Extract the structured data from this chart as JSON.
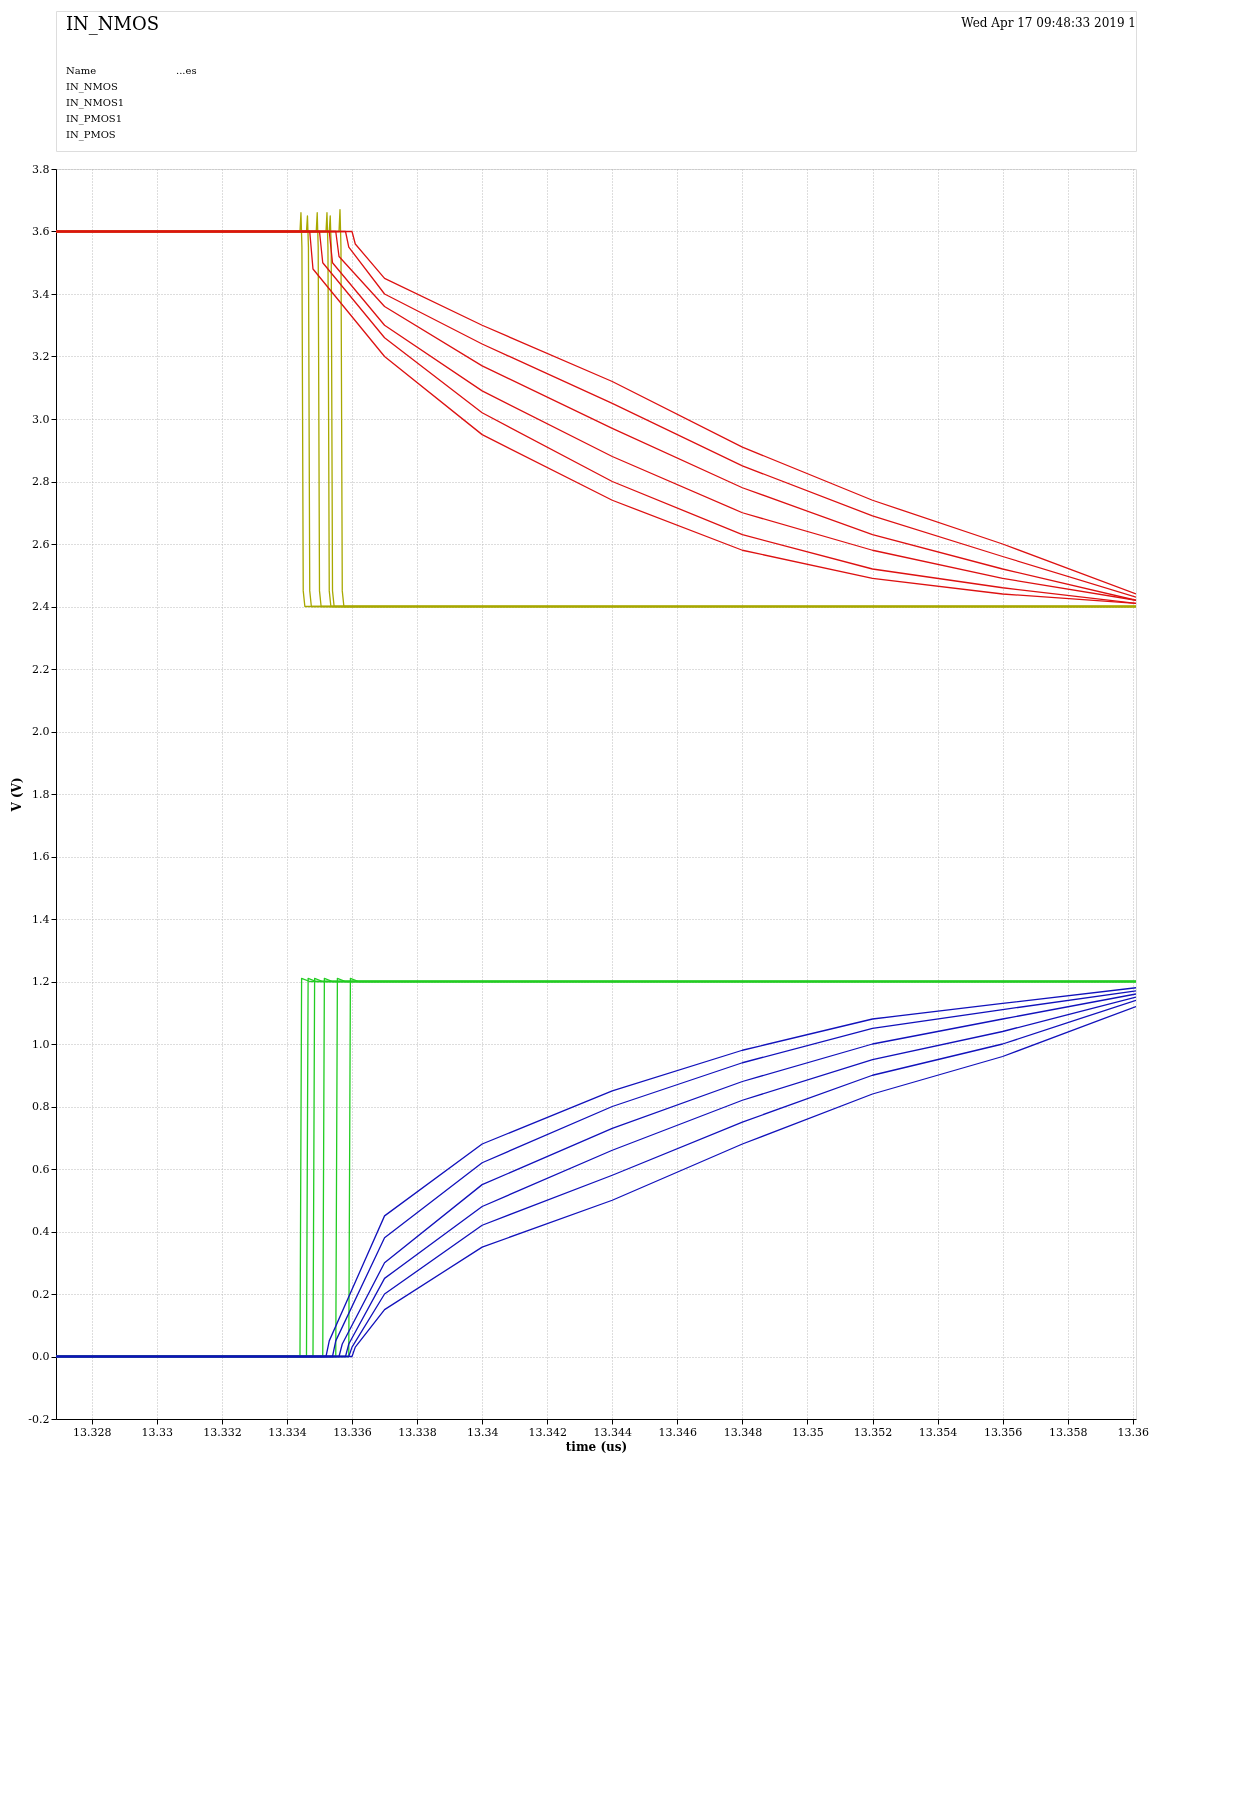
{
  "chart_data": {
    "type": "line",
    "title": "IN_NMOS",
    "xlabel": "time (us)",
    "ylabel": "V (V)",
    "annotations": [
      "Wed Apr 17 09:48:33 2019 1",
      "Name",
      "...es",
      "IN_NMOS",
      "IN_NMOS1",
      "IN_PMOS1",
      "IN_PMOS"
    ],
    "xlim": [
      13.3269,
      13.3601
    ],
    "ylim": [
      -0.2,
      3.8
    ],
    "xticks": [
      13.328,
      13.33,
      13.332,
      13.334,
      13.336,
      13.338,
      13.34,
      13.342,
      13.344,
      13.346,
      13.348,
      13.35,
      13.352,
      13.354,
      13.356,
      13.358,
      13.36
    ],
    "yticks": [
      -0.2,
      {
        "value": 0,
        "label": "0.0"
      },
      0.2,
      0.4,
      0.6,
      0.8,
      {
        "value": 1,
        "label": "1.0"
      },
      1.2,
      1.4,
      1.6,
      1.8,
      {
        "value": 2,
        "label": "2.0"
      },
      2.2,
      2.4,
      2.6,
      2.8,
      {
        "value": 3,
        "label": "3.0"
      },
      3.2,
      3.4,
      3.6,
      3.8
    ],
    "grid": true,
    "legend": false,
    "marker": "none",
    "line_style": "solid",
    "series": [
      {
        "color": "#a8a800",
        "x": [
          13.3269,
          13.3344,
          13.33443,
          13.33446,
          13.3345,
          13.33455,
          13.3601
        ],
        "values": [
          3.6,
          3.6,
          3.66,
          3.55,
          2.45,
          2.4,
          2.4
        ]
      },
      {
        "color": "#a8a800",
        "x": [
          13.3269,
          13.3346,
          13.33463,
          13.33466,
          13.3347,
          13.33475,
          13.3601
        ],
        "values": [
          3.6,
          3.6,
          3.65,
          3.55,
          2.45,
          2.4,
          2.4
        ]
      },
      {
        "color": "#a8a800",
        "x": [
          13.3269,
          13.3349,
          13.33493,
          13.33496,
          13.335,
          13.33505,
          13.3601
        ],
        "values": [
          3.6,
          3.6,
          3.66,
          3.55,
          2.45,
          2.4,
          2.4
        ]
      },
      {
        "color": "#a8a800",
        "x": [
          13.3269,
          13.3352,
          13.33523,
          13.33526,
          13.3353,
          13.33535,
          13.3601
        ],
        "values": [
          3.6,
          3.6,
          3.66,
          3.55,
          2.45,
          2.4,
          2.4
        ]
      },
      {
        "color": "#a8a800",
        "x": [
          13.3269,
          13.3353,
          13.33533,
          13.33536,
          13.3354,
          13.33545,
          13.3601
        ],
        "values": [
          3.6,
          3.6,
          3.65,
          3.55,
          2.45,
          2.4,
          2.4
        ]
      },
      {
        "color": "#a8a800",
        "x": [
          13.3269,
          13.3356,
          13.33563,
          13.33566,
          13.3357,
          13.33575,
          13.3601
        ],
        "values": [
          3.6,
          3.6,
          3.67,
          3.55,
          2.45,
          2.4,
          2.4
        ]
      },
      {
        "color": "#22cc22",
        "x": [
          13.3269,
          13.3344,
          13.33445,
          13.3347,
          13.3601
        ],
        "values": [
          0,
          0,
          1.21,
          1.2,
          1.2
        ]
      },
      {
        "color": "#22cc22",
        "x": [
          13.3269,
          13.3346,
          13.33465,
          13.3349,
          13.3601
        ],
        "values": [
          0,
          0,
          1.21,
          1.2,
          1.2
        ]
      },
      {
        "color": "#22cc22",
        "x": [
          13.3269,
          13.3348,
          13.33485,
          13.3351,
          13.3601
        ],
        "values": [
          0,
          0,
          1.21,
          1.2,
          1.2
        ]
      },
      {
        "color": "#22cc22",
        "x": [
          13.3269,
          13.3351,
          13.33515,
          13.3354,
          13.3601
        ],
        "values": [
          0,
          0,
          1.21,
          1.2,
          1.2
        ]
      },
      {
        "color": "#22cc22",
        "x": [
          13.3269,
          13.3355,
          13.33555,
          13.3358,
          13.3601
        ],
        "values": [
          0,
          0,
          1.21,
          1.2,
          1.2
        ]
      },
      {
        "color": "#22cc22",
        "x": [
          13.3269,
          13.3359,
          13.33595,
          13.3362,
          13.3601
        ],
        "values": [
          0,
          0,
          1.21,
          1.2,
          1.2
        ]
      },
      {
        "color": "#dd1111",
        "x": [
          13.3269,
          13.3347,
          13.3348,
          13.337,
          13.34,
          13.344,
          13.348,
          13.352,
          13.356,
          13.3601
        ],
        "values": [
          3.6,
          3.6,
          3.48,
          3.2,
          2.95,
          2.74,
          2.58,
          2.49,
          2.44,
          2.41
        ]
      },
      {
        "color": "#dd1111",
        "x": [
          13.3269,
          13.335,
          13.3351,
          13.337,
          13.34,
          13.344,
          13.348,
          13.352,
          13.356,
          13.3601
        ],
        "values": [
          3.6,
          3.6,
          3.5,
          3.26,
          3.02,
          2.8,
          2.63,
          2.52,
          2.46,
          2.41
        ]
      },
      {
        "color": "#dd1111",
        "x": [
          13.3269,
          13.3353,
          13.3354,
          13.337,
          13.34,
          13.344,
          13.348,
          13.352,
          13.356,
          13.3601
        ],
        "values": [
          3.6,
          3.6,
          3.5,
          3.3,
          3.09,
          2.88,
          2.7,
          2.58,
          2.49,
          2.42
        ]
      },
      {
        "color": "#dd1111",
        "x": [
          13.3269,
          13.3355,
          13.3356,
          13.337,
          13.34,
          13.344,
          13.348,
          13.352,
          13.356,
          13.3601
        ],
        "values": [
          3.6,
          3.6,
          3.52,
          3.36,
          3.17,
          2.97,
          2.78,
          2.63,
          2.52,
          2.42
        ]
      },
      {
        "color": "#dd1111",
        "x": [
          13.3269,
          13.3358,
          13.3359,
          13.337,
          13.34,
          13.344,
          13.348,
          13.352,
          13.356,
          13.3601
        ],
        "values": [
          3.6,
          3.6,
          3.55,
          3.4,
          3.24,
          3.05,
          2.85,
          2.69,
          2.56,
          2.43
        ]
      },
      {
        "color": "#dd1111",
        "x": [
          13.3269,
          13.336,
          13.3361,
          13.337,
          13.34,
          13.344,
          13.348,
          13.352,
          13.356,
          13.3601
        ],
        "values": [
          3.6,
          3.6,
          3.56,
          3.45,
          3.3,
          3.12,
          2.91,
          2.74,
          2.6,
          2.44
        ]
      },
      {
        "color": "#1111bb",
        "x": [
          13.3269,
          13.3352,
          13.3353,
          13.337,
          13.34,
          13.344,
          13.348,
          13.352,
          13.356,
          13.3601
        ],
        "values": [
          0,
          0,
          0.05,
          0.45,
          0.68,
          0.85,
          0.98,
          1.08,
          1.13,
          1.18
        ]
      },
      {
        "color": "#1111bb",
        "x": [
          13.3269,
          13.3354,
          13.3355,
          13.337,
          13.34,
          13.344,
          13.348,
          13.352,
          13.356,
          13.3601
        ],
        "values": [
          0,
          0,
          0.05,
          0.38,
          0.62,
          0.8,
          0.94,
          1.05,
          1.11,
          1.17
        ]
      },
      {
        "color": "#1111bb",
        "x": [
          13.3269,
          13.3356,
          13.3357,
          13.337,
          13.34,
          13.344,
          13.348,
          13.352,
          13.356,
          13.3601
        ],
        "values": [
          0,
          0,
          0.04,
          0.3,
          0.55,
          0.73,
          0.88,
          1.0,
          1.08,
          1.16
        ]
      },
      {
        "color": "#1111bb",
        "x": [
          13.3269,
          13.3358,
          13.3359,
          13.337,
          13.34,
          13.344,
          13.348,
          13.352,
          13.356,
          13.3601
        ],
        "values": [
          0,
          0,
          0.04,
          0.25,
          0.48,
          0.66,
          0.82,
          0.95,
          1.04,
          1.15
        ]
      },
      {
        "color": "#1111bb",
        "x": [
          13.3269,
          13.3359,
          13.336,
          13.337,
          13.34,
          13.344,
          13.348,
          13.352,
          13.356,
          13.3601
        ],
        "values": [
          0,
          0,
          0.03,
          0.2,
          0.42,
          0.58,
          0.75,
          0.9,
          1.0,
          1.14
        ]
      },
      {
        "color": "#1111bb",
        "x": [
          13.3269,
          13.336,
          13.3361,
          13.337,
          13.34,
          13.344,
          13.348,
          13.352,
          13.356,
          13.3601
        ],
        "values": [
          0,
          0,
          0.03,
          0.15,
          0.35,
          0.5,
          0.68,
          0.84,
          0.96,
          1.12
        ]
      }
    ]
  }
}
